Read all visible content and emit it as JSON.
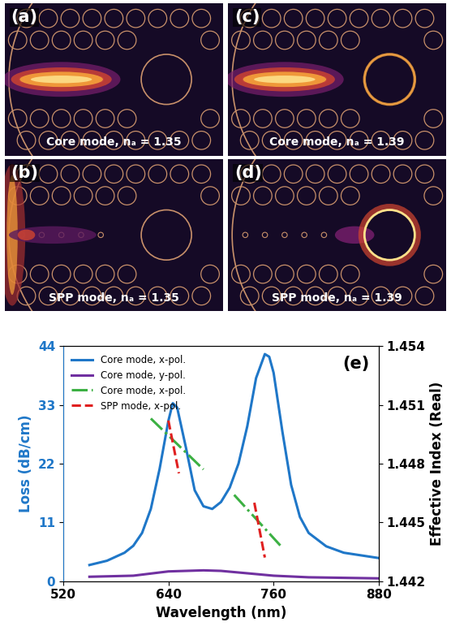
{
  "panels": [
    {
      "label": "(a)",
      "caption": "Core mode, nₐ = 1.35"
    },
    {
      "label": "(b)",
      "caption": "SPP mode, nₐ = 1.35"
    },
    {
      "label": "(c)",
      "caption": "Core mode, nₐ = 1.39"
    },
    {
      "label": "(d)",
      "caption": "SPP mode, nₐ = 1.39"
    }
  ],
  "chart_data": {
    "type": "line",
    "label": "(e)",
    "x_label": "Wavelength (nm)",
    "y_label": "Loss (dB/cm)",
    "y2_label": "Effective Index (Real)",
    "xlim": [
      520,
      880
    ],
    "xticks": [
      520,
      640,
      760,
      880
    ],
    "ylim": [
      0,
      44
    ],
    "yticks": [
      0,
      11,
      22,
      33,
      44
    ],
    "y2lim": [
      1.442,
      1.454
    ],
    "y2ticks": [
      1.442,
      1.445,
      1.448,
      1.451,
      1.454
    ],
    "legend": "upper left",
    "series": [
      {
        "name": "Core mode, x-pol.",
        "color": "#1f77c8",
        "line_style": "solid",
        "axis": "y",
        "x": [
          550,
          570,
          590,
          600,
          610,
          620,
          630,
          640,
          645,
          650,
          660,
          670,
          680,
          690,
          700,
          710,
          720,
          730,
          740,
          750,
          755,
          760,
          770,
          780,
          790,
          800,
          820,
          840,
          860,
          880
        ],
        "values": [
          3.0,
          3.8,
          5.3,
          6.6,
          9.0,
          13.5,
          21.0,
          30.0,
          33.3,
          32.5,
          25.0,
          17.0,
          14.0,
          13.5,
          14.8,
          17.5,
          22.0,
          29.0,
          38.0,
          42.5,
          42.0,
          39.0,
          28.0,
          18.0,
          12.0,
          9.0,
          6.5,
          5.3,
          4.8,
          4.3
        ]
      },
      {
        "name": "Core mode, y-pol.",
        "color": "#7030a0",
        "line_style": "solid",
        "axis": "y",
        "x": [
          550,
          600,
          640,
          660,
          680,
          700,
          720,
          760,
          800,
          880
        ],
        "values": [
          0.8,
          1.0,
          1.8,
          1.9,
          2.0,
          1.9,
          1.6,
          1.0,
          0.7,
          0.5
        ]
      },
      {
        "name": "Core mode, x-pol.",
        "color": "#3cb043",
        "line_style": "dashdot",
        "axis": "y2",
        "x": [
          620,
          680,
          null,
          715,
          770
        ],
        "values": [
          1.4503,
          1.4477,
          null,
          1.4464,
          1.4437
        ]
      },
      {
        "name": "SPP mode, x-pol.",
        "color": "#e02020",
        "line_style": "dashed",
        "axis": "y2",
        "x": [
          640,
          652,
          null,
          738,
          750
        ],
        "values": [
          1.4502,
          1.4475,
          null,
          1.446,
          1.4432
        ]
      }
    ]
  }
}
